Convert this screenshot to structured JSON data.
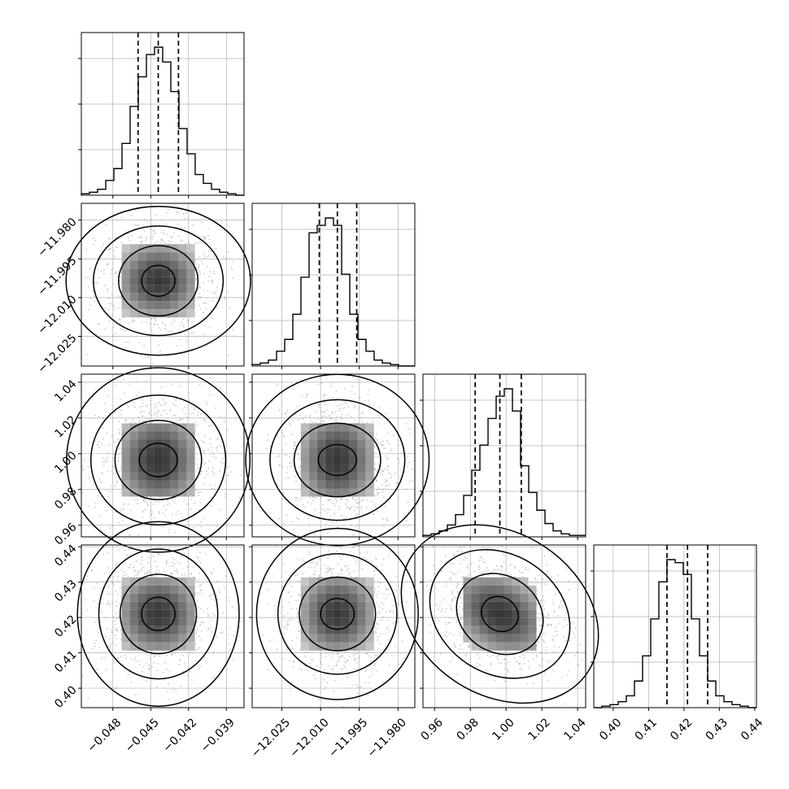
{
  "chart_data": {
    "type": "corner_plot",
    "n_params": 4,
    "grid": true,
    "quantile_lines": "dashed",
    "params": [
      {
        "ticks": [
          "−0.048",
          "−0.045",
          "−0.042",
          "−0.039"
        ],
        "tick_values": [
          -0.048,
          -0.045,
          -0.042,
          -0.039
        ],
        "range": [
          -0.0505,
          -0.0376
        ],
        "quantiles": [
          -0.046,
          -0.0444,
          -0.0428
        ],
        "hist": [
          1,
          2,
          4,
          10,
          18,
          35,
          60,
          80,
          95,
          100,
          90,
          70,
          45,
          28,
          14,
          8,
          4,
          2,
          1,
          0
        ]
      },
      {
        "ticks": [
          "−12.025",
          "−12.010",
          "−11.995",
          "−11.980"
        ],
        "tick_values": [
          -12.025,
          -12.01,
          -11.995,
          -11.98
        ],
        "range": [
          -12.0365,
          -11.9735
        ],
        "quantiles": [
          -12.0105,
          -12.0035,
          -11.996
        ],
        "hist": [
          1,
          2,
          4,
          10,
          18,
          35,
          60,
          90,
          95,
          100,
          95,
          62,
          35,
          18,
          10,
          4,
          2,
          1,
          0,
          0
        ]
      },
      {
        "ticks": [
          "0.96",
          "0.98",
          "1.00",
          "1.02",
          "1.04"
        ],
        "tick_values": [
          0.96,
          0.98,
          1.0,
          1.02,
          1.04
        ],
        "range": [
          0.9535,
          1.0445
        ],
        "quantiles": [
          0.9827,
          0.9965,
          1.0085
        ],
        "hist": [
          1,
          2,
          4,
          8,
          15,
          28,
          45,
          62,
          80,
          95,
          100,
          85,
          48,
          30,
          18,
          9,
          4,
          2,
          1,
          1
        ]
      },
      {
        "ticks": [
          "0.40",
          "0.41",
          "0.42",
          "0.43",
          "0.44"
        ],
        "tick_values": [
          0.4,
          0.41,
          0.42,
          0.43,
          0.44
        ],
        "range": [
          0.3945,
          0.4405
        ],
        "quantiles": [
          0.4152,
          0.421,
          0.4267
        ],
        "hist": [
          0,
          1,
          2,
          4,
          8,
          18,
          35,
          60,
          85,
          100,
          98,
          90,
          60,
          35,
          18,
          8,
          4,
          2,
          1,
          0
        ]
      }
    ],
    "correlations": [
      {
        "row": 1,
        "col": 0,
        "rho": 0.0
      },
      {
        "row": 2,
        "col": 0,
        "rho": 0.0
      },
      {
        "row": 2,
        "col": 1,
        "rho": 0.0
      },
      {
        "row": 3,
        "col": 0,
        "rho": 0.0
      },
      {
        "row": 3,
        "col": 1,
        "rho": 0.0
      },
      {
        "row": 3,
        "col": 2,
        "rho": -0.3
      }
    ],
    "colors": {
      "frame": "#000000",
      "grid": "#b0b0b0",
      "points": "#9a9a9a",
      "contour": "#000000"
    }
  }
}
